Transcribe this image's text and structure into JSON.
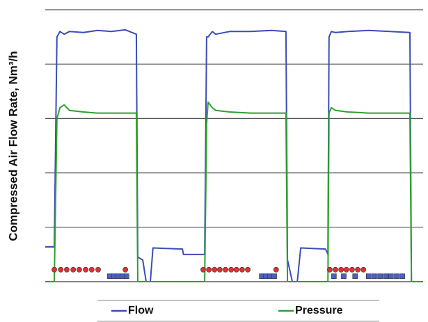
{
  "chart_data": {
    "type": "line",
    "y_label": "Compressed Air Flow Rate, Nm³/h",
    "xlim": [
      0,
      100
    ],
    "ylim": [
      0,
      5
    ],
    "yticks": [
      0,
      1,
      2,
      3,
      4,
      5
    ],
    "grid": true,
    "legend": "bottom",
    "x": [
      0,
      2.4,
      3.1,
      3.9,
      5,
      6.4,
      10.1,
      13.8,
      17.5,
      21.2,
      24.1,
      24.5,
      25.8,
      26.7,
      27.8,
      28.5,
      36.3,
      36.6,
      42.2,
      42.7,
      43.1,
      44.2,
      45.1,
      48.8,
      54.3,
      59.9,
      63.7,
      64.1,
      65.4,
      66.7,
      67.6,
      74.2,
      74.8,
      75.1,
      75.7,
      76.8,
      80.1,
      85.6,
      91.2,
      96.5,
      96.9,
      100
    ],
    "series": [
      {
        "name": "Flow",
        "color": "#3a4db5",
        "values": [
          0.64,
          0.64,
          4.5,
          4.6,
          4.55,
          4.6,
          4.58,
          4.62,
          4.6,
          4.63,
          4.55,
          0.45,
          0.4,
          0,
          0,
          0.62,
          0.6,
          0.5,
          0.5,
          4.5,
          4.5,
          4.6,
          4.55,
          4.6,
          4.6,
          4.62,
          4.6,
          0.4,
          0,
          0,
          0.62,
          0.6,
          0.5,
          4.5,
          4.6,
          4.58,
          4.6,
          4.62,
          4.6,
          4.58,
          0,
          0
        ]
      },
      {
        "name": "Pressure",
        "color": "#2ea02e",
        "values": [
          0,
          0,
          3.0,
          3.2,
          3.25,
          3.15,
          3.12,
          3.1,
          3.1,
          3.1,
          3.1,
          0,
          0,
          0,
          0,
          0,
          0,
          0,
          0,
          2.9,
          3.3,
          3.2,
          3.15,
          3.12,
          3.1,
          3.1,
          3.1,
          0,
          0,
          0,
          0,
          0,
          0,
          3.1,
          3.2,
          3.15,
          3.12,
          3.1,
          3.1,
          3.1,
          0,
          0
        ]
      },
      {
        "type": "scatter",
        "marker": "circle",
        "color": "#e03030",
        "x": [
          2.4,
          4.1,
          5.7,
          7.4,
          9.0,
          10.7,
          12.3,
          14.0,
          21.2,
          41.8,
          43.3,
          44.8,
          46.2,
          47.7,
          49.2,
          50.6,
          52.1,
          53.6,
          61.1,
          75.3,
          76.8,
          78.3,
          79.7,
          81.2,
          82.7,
          84.2
        ],
        "values": [
          0.22,
          0.22,
          0.22,
          0.22,
          0.22,
          0.22,
          0.22,
          0.22,
          0.22,
          0.22,
          0.22,
          0.22,
          0.22,
          0.22,
          0.22,
          0.22,
          0.22,
          0.22,
          0.22,
          0.22,
          0.22,
          0.22,
          0.22,
          0.22,
          0.22,
          0.22
        ]
      },
      {
        "type": "scatter",
        "marker": "square",
        "color": "#4a5fc0",
        "x": [
          17.1,
          18.2,
          19.3,
          20.4,
          21.5,
          57.3,
          58.4,
          59.5,
          60.6,
          76.4,
          79.0,
          82.0,
          85.6,
          87.1,
          88.6,
          90.1,
          91.5,
          93.0,
          94.5
        ],
        "values": [
          0.1,
          0.1,
          0.1,
          0.1,
          0.1,
          0.1,
          0.1,
          0.1,
          0.1,
          0.1,
          0.1,
          0.1,
          0.1,
          0.1,
          0.1,
          0.1,
          0.1,
          0.1,
          0.1
        ]
      }
    ]
  }
}
